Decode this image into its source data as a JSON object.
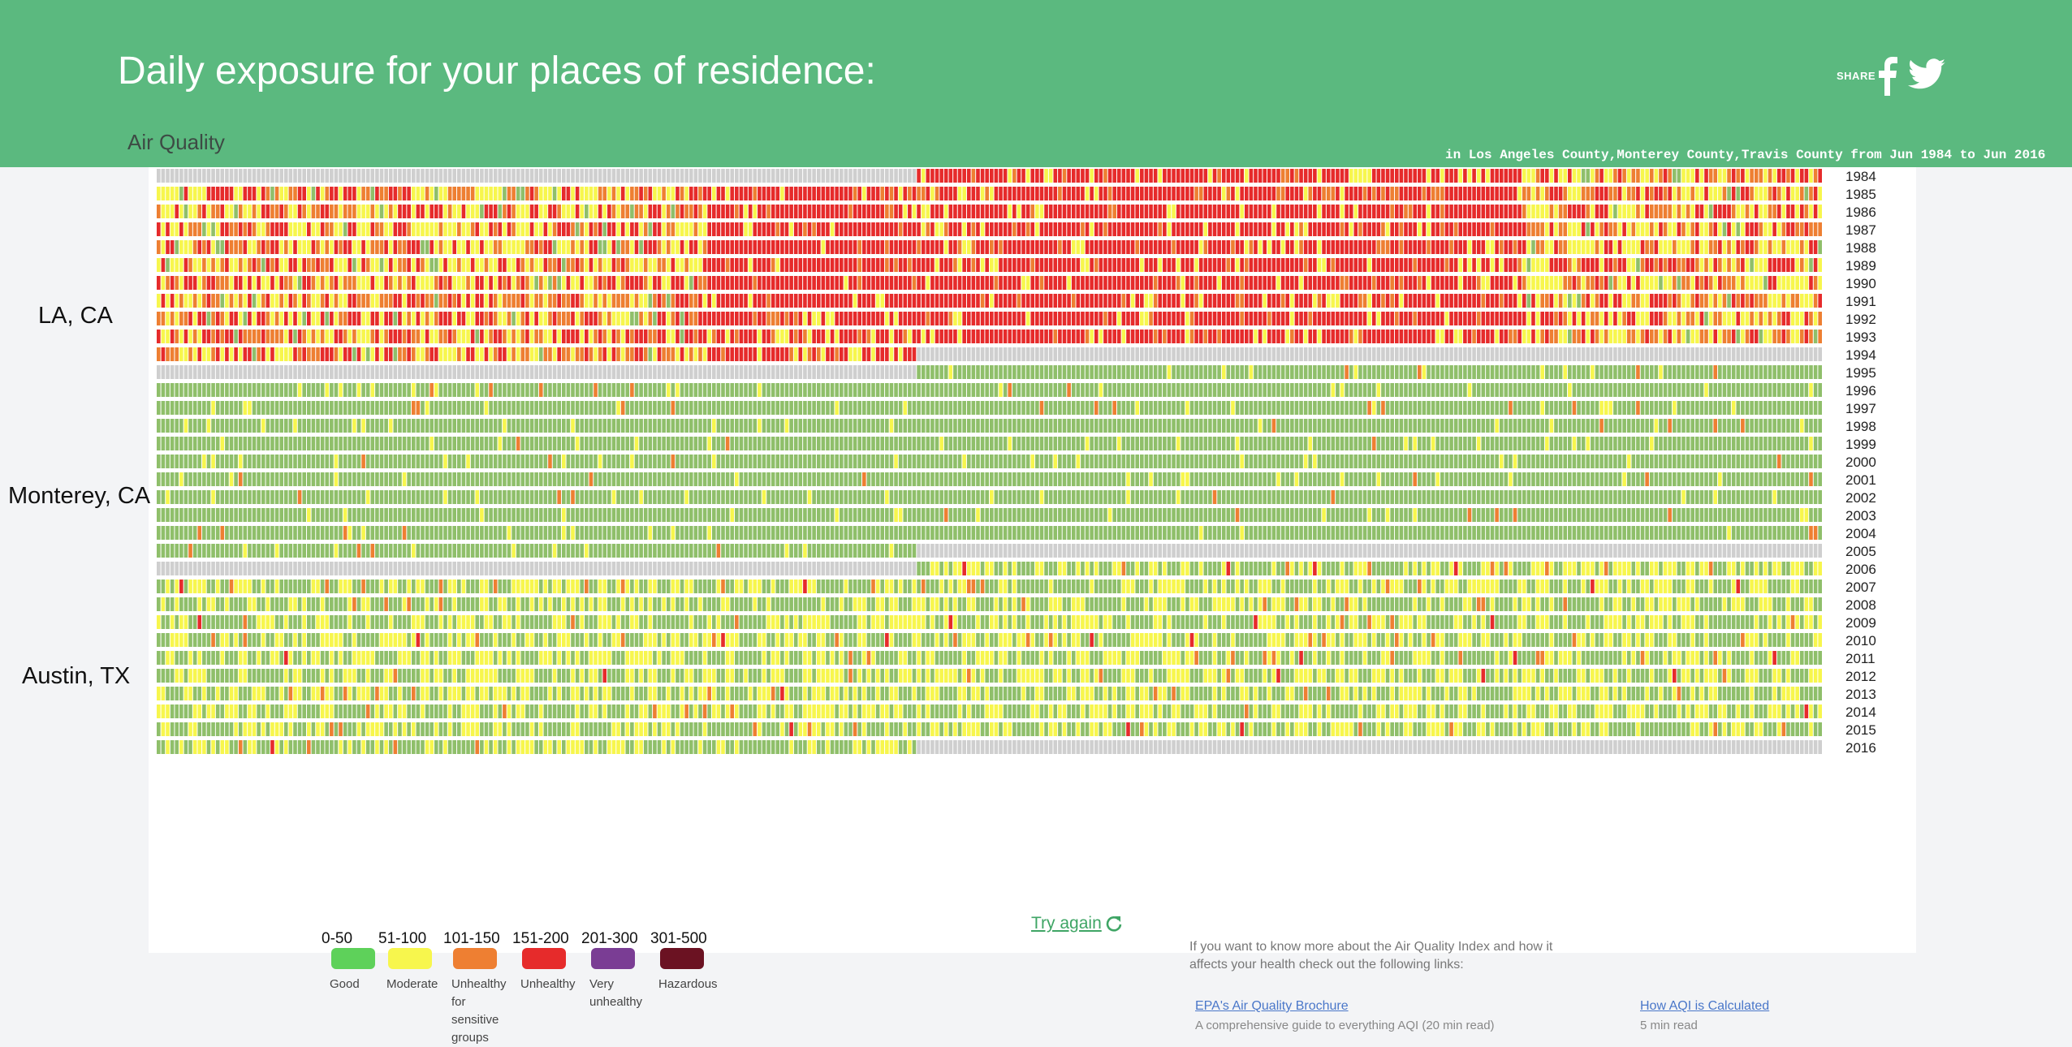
{
  "header": {
    "title": "Daily exposure for your places of residence:",
    "subtitle": "Air Quality",
    "share_label": "SHARE",
    "share_icons": [
      "facebook-icon",
      "twitter-icon"
    ],
    "location_summary": "in Los Angeles County,Monterey County,Travis County from Jun 1984 to Jun 2016"
  },
  "regions": [
    {
      "label": "LA, CA",
      "start": "Jun 1984",
      "end": "Jun 1995"
    },
    {
      "label": "Monterey, CA",
      "start": "Jun 1995",
      "end": "Jun 2006"
    },
    {
      "label": "Austin, TX",
      "start": "Jun 2006",
      "end": "Jun 2016"
    }
  ],
  "chart_data": {
    "type": "heatmap",
    "years": [
      "1984",
      "1985",
      "1986",
      "1987",
      "1988",
      "1989",
      "1990",
      "1991",
      "1992",
      "1993",
      "1994",
      "1995",
      "1996",
      "1997",
      "1998",
      "1999",
      "2000",
      "2001",
      "2002",
      "2003",
      "2004",
      "2005",
      "2006",
      "2007",
      "2008",
      "2009",
      "2010",
      "2011",
      "2012",
      "2013",
      "2014",
      "2015",
      "2016"
    ],
    "x": "day of year (Jan–Dec)",
    "no_data_color": "#cfcfcf",
    "dominant_category_by_year": {
      "1984": "Unhealthy",
      "1985": "Unhealthy for sensitive groups",
      "1986": "Unhealthy for sensitive groups",
      "1987": "Unhealthy",
      "1988": "Unhealthy",
      "1989": "Unhealthy",
      "1990": "Unhealthy",
      "1991": "Unhealthy",
      "1992": "Unhealthy",
      "1993": "Unhealthy",
      "1994": "Unhealthy for sensitive groups",
      "1995": "Good",
      "1996": "Good",
      "1997": "Good",
      "1998": "Good",
      "1999": "Good",
      "2000": "Good",
      "2001": "Good",
      "2002": "Good",
      "2003": "Good",
      "2004": "Good",
      "2005": "Good",
      "2006": "Moderate",
      "2007": "Good",
      "2008": "Moderate",
      "2009": "Moderate",
      "2010": "Moderate",
      "2011": "Moderate",
      "2012": "Moderate",
      "2013": "Moderate",
      "2014": "Moderate",
      "2015": "Moderate",
      "2016": "Good"
    }
  },
  "legend": [
    {
      "range": "0-50",
      "label": "Good",
      "color": "#5ed15a"
    },
    {
      "range": "51-100",
      "label": "Moderate",
      "color": "#f7f64d"
    },
    {
      "range": "101-150",
      "label": "Unhealthy for sensitive groups",
      "color": "#ee7f32"
    },
    {
      "range": "151-200",
      "label": "Unhealthy",
      "color": "#e62b2b"
    },
    {
      "range": "201-300",
      "label": "Very unhealthy",
      "color": "#7a3d94"
    },
    {
      "range": "301-500",
      "label": "Hazardous",
      "color": "#6b1222"
    }
  ],
  "info": {
    "text": "If you want to know more about the Air Quality Index and how it affects your health check out the following links:",
    "links": [
      {
        "label": "EPA's Air Quality Brochure",
        "desc": "A comprehensive guide to everything AQI (20 min read)"
      },
      {
        "label": "How AQI is Calculated",
        "desc": "5 min read"
      }
    ]
  },
  "try_again": "Try again",
  "colors": {
    "header_bg": "#5bb97f",
    "link": "#4a77c9",
    "try_again": "#3fa565"
  }
}
